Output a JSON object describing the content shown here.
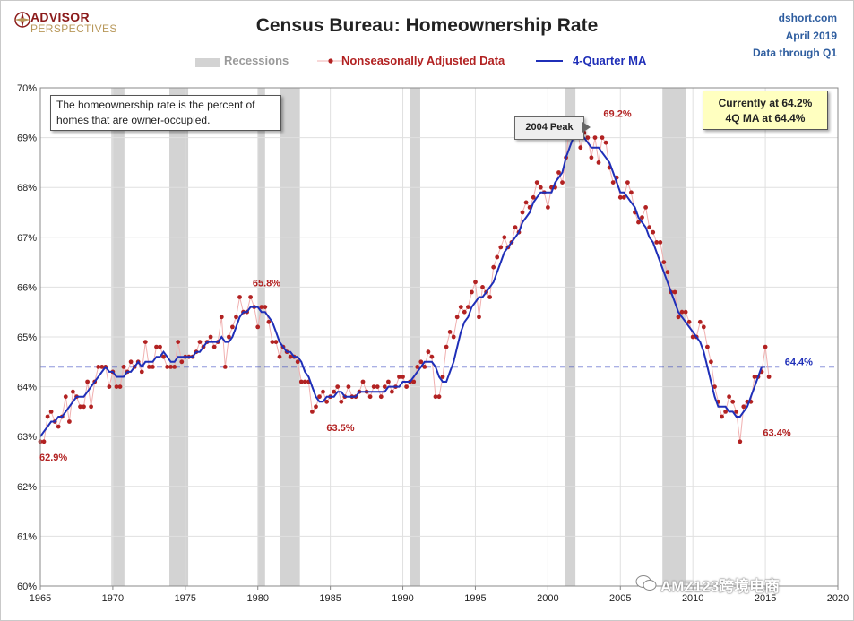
{
  "header": {
    "logo_line1": "ADVISOR",
    "logo_line2": "PERSPECTIVES",
    "title": "Census Bureau: Homeownership Rate",
    "source": "dshort.com",
    "date": "April 2019",
    "data_through": "Data through Q1"
  },
  "legend": {
    "recessions": "Recessions",
    "nsa": "Nonseasonally Adjusted Data",
    "ma": "4-Quarter MA"
  },
  "annotations": {
    "note": "The homeownership rate is the percent of homes that are owner-occupied.",
    "current_line1": "Currently at 64.2%",
    "current_line2": "4Q MA at 64.4%",
    "peak_callout": "2004 Peak",
    "label_start": "62.9%",
    "label_1980": "65.8%",
    "label_1985": "63.5%",
    "label_2004": "69.2%",
    "label_2016": "63.4%",
    "label_ref": "64.4%"
  },
  "watermark": "AMZ123跨境电商",
  "colors": {
    "nsa": "#b22222",
    "nsa_line": "#f0b0b0",
    "ma": "#1f2fb8",
    "recession": "#d3d3d3",
    "grid": "#e0e0e0",
    "ref_line": "#1f2fb8",
    "title_blue": "#2e5d9f"
  },
  "chart_data": {
    "type": "line",
    "title": "Census Bureau: Homeownership Rate",
    "xlabel": "",
    "ylabel": "",
    "xlim": [
      1965,
      2020
    ],
    "ylim": [
      60,
      70
    ],
    "x_ticks": [
      1965,
      1970,
      1975,
      1980,
      1985,
      1990,
      1995,
      2000,
      2005,
      2010,
      2015,
      2020
    ],
    "y_ticks": [
      "60%",
      "61%",
      "62%",
      "63%",
      "64%",
      "65%",
      "66%",
      "67%",
      "68%",
      "69%",
      "70%"
    ],
    "grid": true,
    "legend_position": "top",
    "reference_line": 64.4,
    "recessions": [
      [
        1969.9,
        1970.8
      ],
      [
        1973.9,
        1975.2
      ],
      [
        1980.0,
        1980.5
      ],
      [
        1981.5,
        1982.9
      ],
      [
        1990.5,
        1991.2
      ],
      [
        2001.2,
        2001.9
      ],
      [
        2007.9,
        2009.5
      ]
    ],
    "series": [
      {
        "name": "Nonseasonally Adjusted Data",
        "quarterly_start": 1965.0,
        "values": [
          62.9,
          62.9,
          63.4,
          63.5,
          63.3,
          63.2,
          63.4,
          63.8,
          63.3,
          63.9,
          63.8,
          63.6,
          63.6,
          64.1,
          63.6,
          64.1,
          64.4,
          64.4,
          64.4,
          64.0,
          64.3,
          64.0,
          64.0,
          64.4,
          64.3,
          64.5,
          64.4,
          64.5,
          64.3,
          64.9,
          64.4,
          64.4,
          64.8,
          64.8,
          64.6,
          64.4,
          64.4,
          64.4,
          64.9,
          64.5,
          64.6,
          64.6,
          64.6,
          64.7,
          64.9,
          64.8,
          64.9,
          65.0,
          64.8,
          64.9,
          65.4,
          64.4,
          65.0,
          65.2,
          65.4,
          65.8,
          65.5,
          65.5,
          65.8,
          65.6,
          65.2,
          65.6,
          65.6,
          65.3,
          64.9,
          64.9,
          64.6,
          64.8,
          64.7,
          64.6,
          64.6,
          64.5,
          64.1,
          64.1,
          64.1,
          63.5,
          63.6,
          63.8,
          63.9,
          63.7,
          63.8,
          63.9,
          64.0,
          63.7,
          63.8,
          64.0,
          63.8,
          63.8,
          63.9,
          64.1,
          63.9,
          63.8,
          64.0,
          64.0,
          63.8,
          64.0,
          64.1,
          63.9,
          64.0,
          64.2,
          64.2,
          64.0,
          64.1,
          64.1,
          64.4,
          64.5,
          64.4,
          64.7,
          64.6,
          63.8,
          63.8,
          64.2,
          64.8,
          65.1,
          65.0,
          65.4,
          65.6,
          65.5,
          65.6,
          65.9,
          66.1,
          65.4,
          66.0,
          65.9,
          65.8,
          66.4,
          66.6,
          66.8,
          67.0,
          66.8,
          66.9,
          67.2,
          67.1,
          67.5,
          67.7,
          67.6,
          67.8,
          68.1,
          68.0,
          67.9,
          67.6,
          68.0,
          68.0,
          68.3,
          68.1,
          68.6,
          69.2,
          69.0,
          69.2,
          68.8,
          69.1,
          69.0,
          68.6,
          69.0,
          68.5,
          69.0,
          68.9,
          68.4,
          68.1,
          68.2,
          67.8,
          67.8,
          68.1,
          67.9,
          67.5,
          67.3,
          67.4,
          67.6,
          67.2,
          67.1,
          66.9,
          66.9,
          66.5,
          66.3,
          65.9,
          65.9,
          65.4,
          65.5,
          65.5,
          65.3,
          65.0,
          65.0,
          65.3,
          65.2,
          64.8,
          64.5,
          64.0,
          63.7,
          63.4,
          63.5,
          63.8,
          63.7,
          63.5,
          62.9,
          63.6,
          63.7,
          63.7,
          64.2,
          64.2,
          64.3,
          64.8,
          64.2
        ]
      },
      {
        "name": "4-Quarter MA",
        "quarterly_start": 1965.0,
        "values": [
          63.0,
          63.1,
          63.2,
          63.3,
          63.3,
          63.4,
          63.4,
          63.5,
          63.6,
          63.7,
          63.8,
          63.8,
          63.8,
          63.9,
          64.0,
          64.1,
          64.2,
          64.3,
          64.4,
          64.3,
          64.3,
          64.2,
          64.2,
          64.2,
          64.3,
          64.3,
          64.4,
          64.5,
          64.4,
          64.5,
          64.5,
          64.5,
          64.6,
          64.6,
          64.7,
          64.6,
          64.5,
          64.5,
          64.6,
          64.6,
          64.6,
          64.6,
          64.6,
          64.7,
          64.7,
          64.8,
          64.9,
          64.9,
          64.9,
          64.9,
          65.0,
          64.9,
          64.9,
          65.0,
          65.2,
          65.4,
          65.5,
          65.5,
          65.6,
          65.6,
          65.6,
          65.5,
          65.5,
          65.4,
          65.3,
          65.1,
          64.9,
          64.8,
          64.7,
          64.7,
          64.6,
          64.6,
          64.5,
          64.3,
          64.2,
          64.0,
          63.8,
          63.7,
          63.7,
          63.8,
          63.8,
          63.8,
          63.9,
          63.9,
          63.8,
          63.8,
          63.8,
          63.8,
          63.9,
          63.9,
          63.9,
          63.9,
          63.9,
          63.9,
          63.9,
          63.9,
          64.0,
          64.0,
          64.0,
          64.0,
          64.1,
          64.1,
          64.1,
          64.2,
          64.3,
          64.4,
          64.5,
          64.5,
          64.5,
          64.4,
          64.2,
          64.1,
          64.1,
          64.3,
          64.5,
          64.8,
          65.1,
          65.3,
          65.4,
          65.6,
          65.7,
          65.8,
          65.8,
          65.9,
          66.0,
          66.1,
          66.3,
          66.5,
          66.7,
          66.8,
          66.9,
          67.0,
          67.1,
          67.3,
          67.4,
          67.5,
          67.7,
          67.8,
          67.9,
          67.9,
          67.9,
          67.9,
          68.1,
          68.2,
          68.3,
          68.6,
          68.8,
          69.0,
          69.0,
          69.1,
          69.0,
          68.9,
          68.8,
          68.8,
          68.8,
          68.7,
          68.6,
          68.5,
          68.3,
          68.1,
          67.9,
          67.9,
          67.8,
          67.7,
          67.6,
          67.4,
          67.3,
          67.2,
          67.0,
          66.9,
          66.7,
          66.5,
          66.3,
          66.1,
          65.9,
          65.7,
          65.5,
          65.4,
          65.3,
          65.2,
          65.1,
          65.0,
          64.9,
          64.7,
          64.4,
          64.1,
          63.8,
          63.6,
          63.6,
          63.6,
          63.5,
          63.5,
          63.4,
          63.4,
          63.5,
          63.6,
          63.8,
          64.0,
          64.2,
          64.4,
          64.4
        ]
      }
    ]
  }
}
